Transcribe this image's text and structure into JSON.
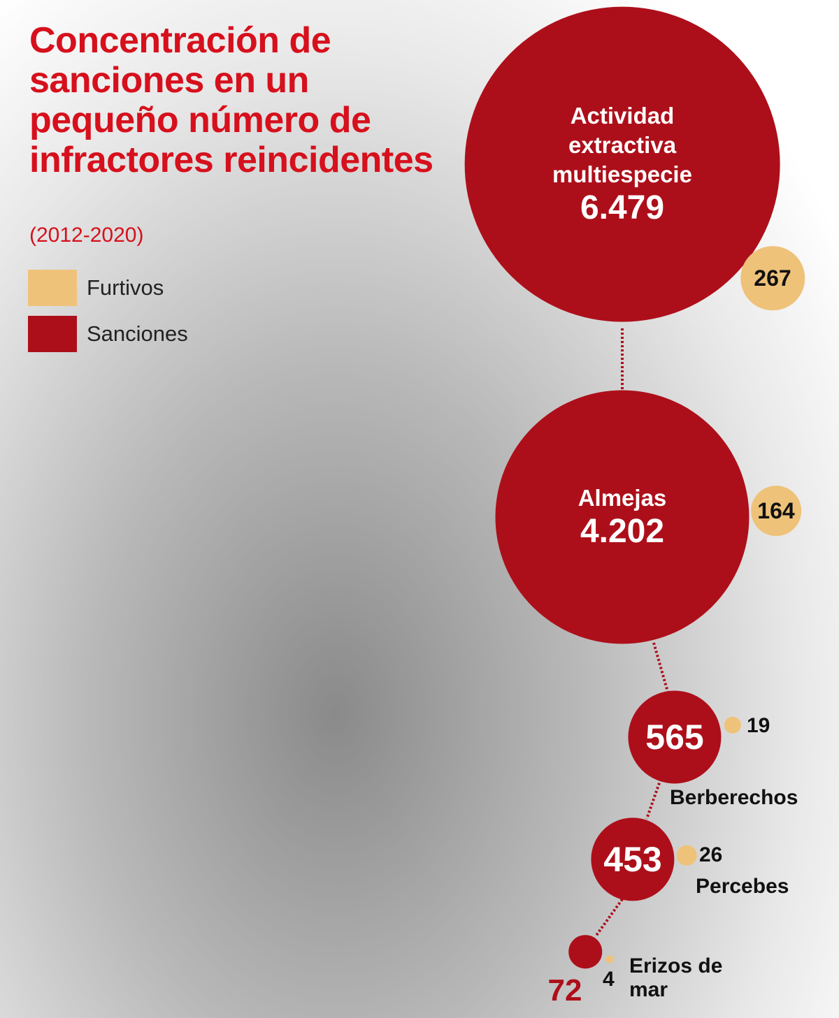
{
  "chart_data": {
    "type": "bubble",
    "title": "Concentración de sanciones en un pequeño número de infractores reincidentes",
    "subtitle": "(2012-2020)",
    "categories": [
      "Actividad extractiva multiespecie",
      "Almejas",
      "Berberechos",
      "Percebes",
      "Erizos de mar"
    ],
    "series": [
      {
        "name": "Furtivos",
        "color": "#efc27a",
        "values": [
          267,
          164,
          19,
          26,
          4
        ]
      },
      {
        "name": "Sanciones",
        "color": "#ad0f1a",
        "values": [
          6479,
          4202,
          565,
          453,
          72
        ],
        "value_labels": [
          "6.479",
          "4.202",
          "565",
          "453",
          "72"
        ]
      }
    ]
  }
}
